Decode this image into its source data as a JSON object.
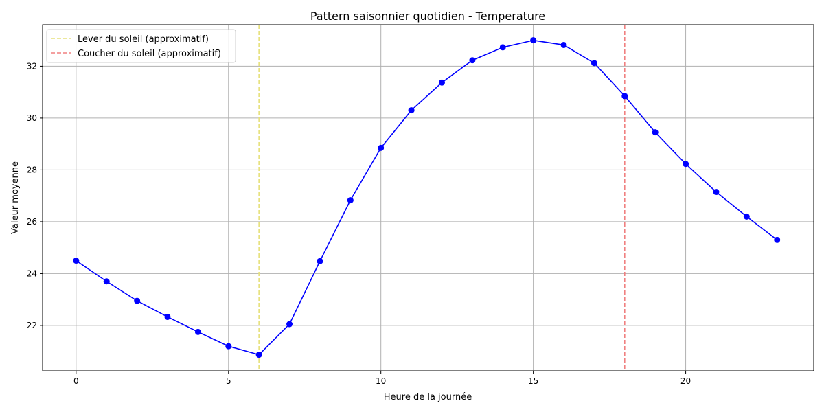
{
  "chart_data": {
    "type": "line",
    "title": "Pattern saisonnier quotidien - Temperature",
    "xlabel": "Heure de la journée",
    "ylabel": "Valeur moyenne",
    "xlim": [
      -1.1,
      24.2
    ],
    "ylim": [
      20.25,
      33.6
    ],
    "xticks": [
      0,
      5,
      10,
      15,
      20
    ],
    "yticks": [
      22,
      24,
      26,
      28,
      30,
      32
    ],
    "grid": true,
    "legend_position": "top-left",
    "series": [
      {
        "color": "#0000ff",
        "x": [
          0,
          1,
          2,
          3,
          4,
          5,
          6,
          7,
          8,
          9,
          10,
          11,
          12,
          13,
          14,
          15,
          16,
          17,
          18,
          19,
          20,
          21,
          22,
          23
        ],
        "values": [
          24.5,
          23.7,
          22.95,
          22.33,
          21.75,
          21.2,
          20.87,
          22.05,
          24.48,
          26.83,
          28.85,
          30.3,
          31.37,
          32.23,
          32.73,
          33.0,
          32.82,
          32.12,
          30.85,
          29.45,
          28.23,
          27.15,
          26.2,
          25.3
        ]
      }
    ],
    "reference_lines": [
      {
        "x": 6,
        "label": "Lever du soleil (approximatif)",
        "color": "#e6e07a"
      },
      {
        "x": 18,
        "label": "Coucher du soleil (approximatif)",
        "color": "#f08080"
      }
    ]
  }
}
